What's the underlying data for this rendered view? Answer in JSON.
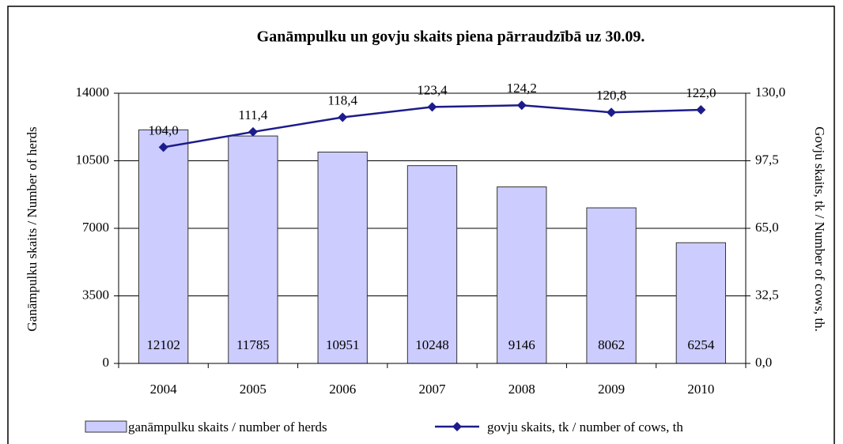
{
  "chart_data": {
    "type": "bar",
    "title": "Ganāmpulku un govju skaits piena pārraudzībā uz 30.09.",
    "y_label": "Ganāmpulku skaits / Number of herds",
    "y2_label": "Govju skaits, tk / Number of cows, th.",
    "categories": [
      "2004",
      "2005",
      "2006",
      "2007",
      "2008",
      "2009",
      "2010"
    ],
    "series": [
      {
        "name": "ganāmpulku skaits / number of herds",
        "type": "bar",
        "color": "#ccccff",
        "values": [
          12102,
          11785,
          10951,
          10248,
          9146,
          8062,
          6254
        ]
      },
      {
        "name": "govju skaits, tk / number of cows, th",
        "type": "line",
        "axis": "y2",
        "color": "#1c1c8c",
        "values": [
          104.0,
          111.4,
          118.4,
          123.4,
          124.2,
          120.8,
          122.0
        ],
        "value_labels": [
          "104,0",
          "111,4",
          "118,4",
          "123,4",
          "124,2",
          "120,8",
          "122,0"
        ]
      }
    ],
    "ylim": [
      0,
      14000
    ],
    "yticks": [
      0,
      3500,
      7000,
      10500,
      14000
    ],
    "y2lim": [
      0,
      130
    ],
    "y2ticks": [
      {
        "value": 0,
        "label": "0,0"
      },
      {
        "value": 32.5,
        "label": "32,5"
      },
      {
        "value": 65,
        "label": "65,0"
      },
      {
        "value": 97.5,
        "label": "97,5"
      },
      {
        "value": 130,
        "label": "130,0"
      }
    ],
    "grid": true,
    "legend": "bottom"
  }
}
